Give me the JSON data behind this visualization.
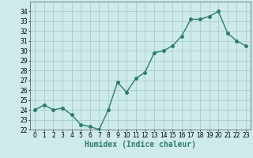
{
  "x": [
    0,
    1,
    2,
    3,
    4,
    5,
    6,
    7,
    8,
    9,
    10,
    11,
    12,
    13,
    14,
    15,
    16,
    17,
    18,
    19,
    20,
    21,
    22,
    23
  ],
  "y": [
    24.0,
    24.5,
    24.0,
    24.2,
    23.5,
    22.5,
    22.3,
    22.0,
    24.0,
    26.8,
    25.8,
    27.2,
    27.8,
    29.8,
    30.0,
    30.5,
    31.5,
    33.2,
    33.2,
    33.5,
    34.0,
    31.8,
    31.0,
    30.5
  ],
  "line_color": "#2e7d6e",
  "marker": "o",
  "markersize": 2.5,
  "linewidth": 1.0,
  "xlabel": "Humidex (Indice chaleur)",
  "xlim": [
    -0.5,
    23.5
  ],
  "ylim": [
    22,
    35
  ],
  "yticks": [
    22,
    23,
    24,
    25,
    26,
    27,
    28,
    29,
    30,
    31,
    32,
    33,
    34
  ],
  "xtick_labels": [
    "0",
    "1",
    "2",
    "3",
    "4",
    "5",
    "6",
    "7",
    "8",
    "9",
    "10",
    "11",
    "12",
    "13",
    "14",
    "15",
    "16",
    "17",
    "18",
    "19",
    "20",
    "21",
    "22",
    "23"
  ],
  "bg_color": "#ceeaea",
  "grid_color": "#a0c8c8",
  "tick_fontsize": 5.5,
  "xlabel_fontsize": 7
}
